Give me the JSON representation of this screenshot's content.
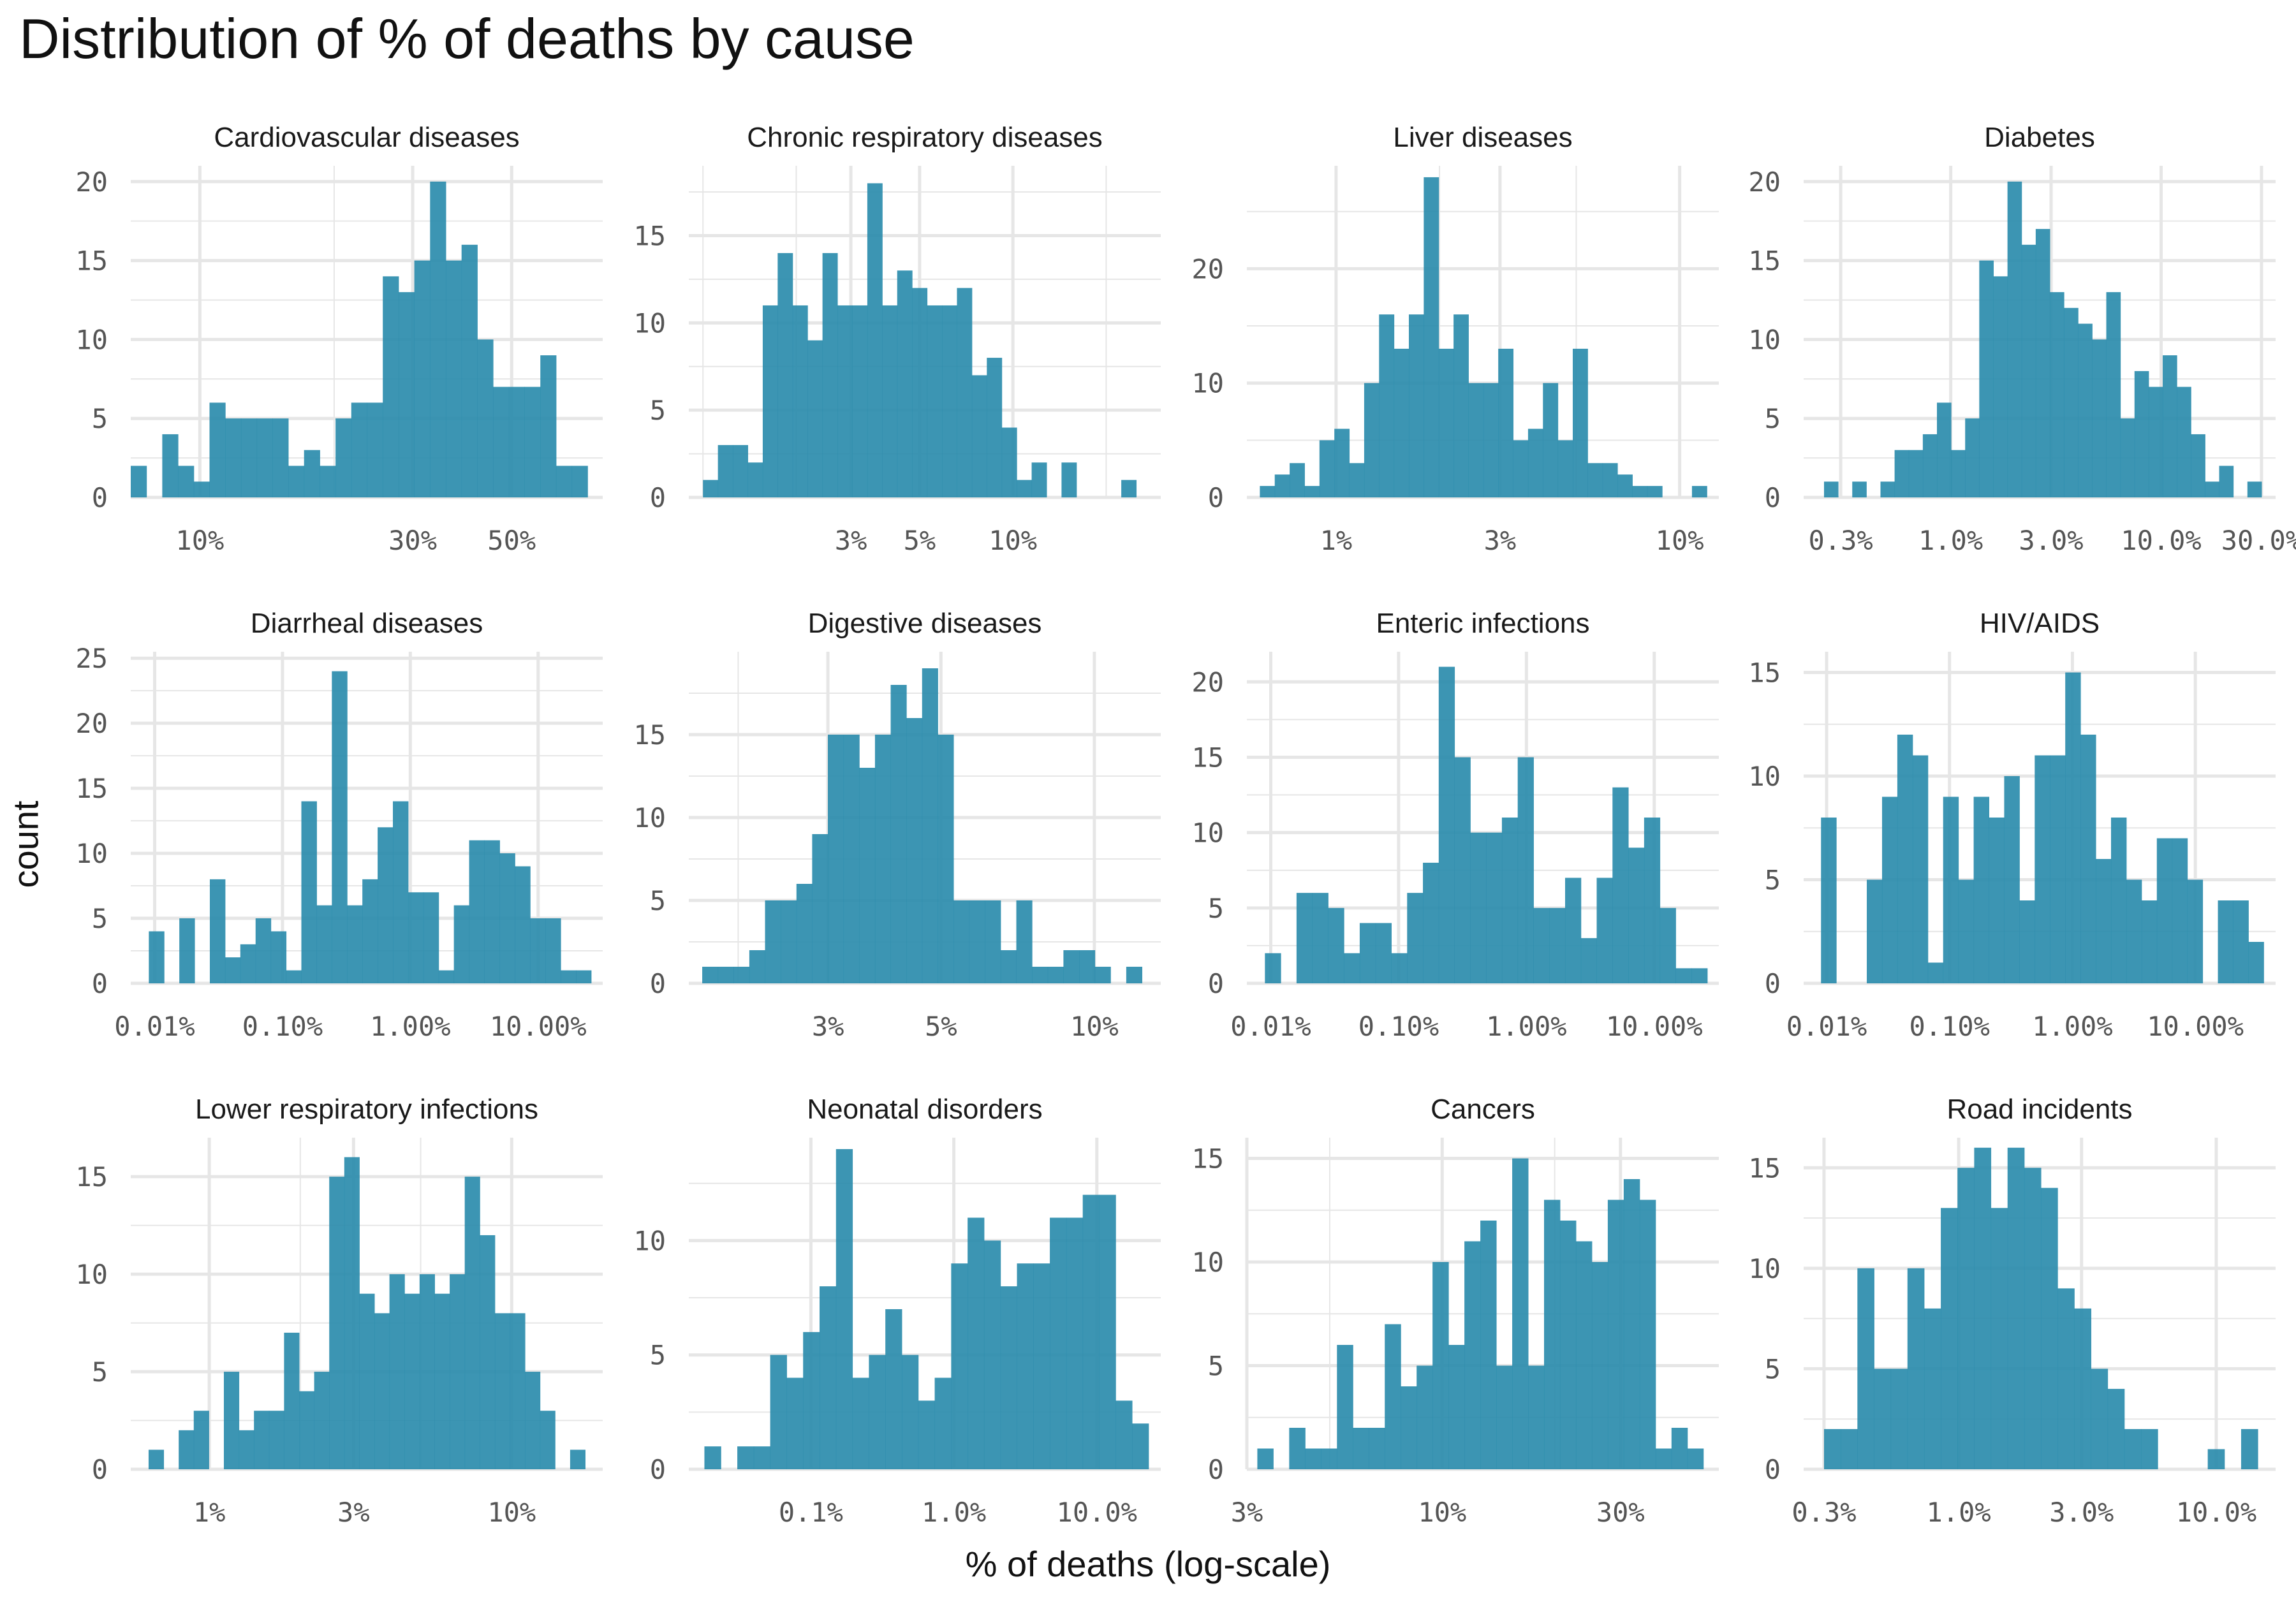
{
  "title": "Distribution of % of deaths by cause",
  "xlabel": "% of deaths (log-scale)",
  "ylabel": "count",
  "colors": {
    "bar": "#2b8cad",
    "grid": "#e6e6e6"
  },
  "chart_data": [
    {
      "type": "bar",
      "title": "Cardiovascular diseases",
      "scale": "log",
      "xlim": [
        7.0,
        80.0
      ],
      "ylim": [
        0,
        21
      ],
      "yticks": [
        0,
        5,
        10,
        15,
        20
      ],
      "xticks": [
        {
          "value": 10,
          "label": "10%"
        },
        {
          "value": 30,
          "label": "30%"
        },
        {
          "value": 50,
          "label": "50%"
        }
      ],
      "minor_x": [
        20
      ],
      "bin_start": 7.0,
      "bin_end": 74.0,
      "values": [
        2,
        0,
        4,
        2,
        1,
        6,
        5,
        5,
        5,
        5,
        2,
        3,
        2,
        5,
        6,
        6,
        14,
        13,
        15,
        20,
        15,
        16,
        10,
        7,
        7,
        7,
        9,
        2,
        2
      ]
    },
    {
      "type": "bar",
      "title": "Chronic respiratory diseases",
      "scale": "log",
      "xlim": [
        0.9,
        30.0
      ],
      "ylim": [
        0,
        19
      ],
      "yticks": [
        0,
        5,
        10,
        15
      ],
      "xticks": [
        {
          "value": 3,
          "label": "3%"
        },
        {
          "value": 5,
          "label": "5%"
        },
        {
          "value": 10,
          "label": "10%"
        }
      ],
      "minor_x": [
        1,
        2,
        20
      ],
      "bin_start": 1.0,
      "bin_end": 25.0,
      "values": [
        1,
        3,
        3,
        2,
        11,
        14,
        11,
        9,
        14,
        11,
        11,
        18,
        11,
        13,
        12,
        11,
        11,
        12,
        7,
        8,
        4,
        1,
        2,
        0,
        2,
        0,
        0,
        0,
        1
      ]
    },
    {
      "type": "bar",
      "title": "Liver diseases",
      "scale": "log",
      "xlim": [
        0.55,
        13.0
      ],
      "ylim": [
        0,
        29
      ],
      "yticks": [
        0,
        10,
        20
      ],
      "xticks": [
        {
          "value": 1,
          "label": "1%"
        },
        {
          "value": 3,
          "label": "3%"
        },
        {
          "value": 10,
          "label": "10%"
        }
      ],
      "minor_x": [
        2,
        5
      ],
      "bin_start": 0.6,
      "bin_end": 12.0,
      "values": [
        1,
        2,
        3,
        1,
        5,
        6,
        3,
        10,
        16,
        13,
        16,
        28,
        13,
        16,
        10,
        10,
        13,
        5,
        6,
        10,
        5,
        13,
        3,
        3,
        2,
        1,
        1,
        0,
        0,
        1
      ]
    },
    {
      "type": "bar",
      "title": "Diabetes",
      "scale": "log",
      "xlim": [
        0.2,
        35.0
      ],
      "ylim": [
        0,
        21
      ],
      "yticks": [
        0,
        5,
        10,
        15,
        20
      ],
      "xticks": [
        {
          "value": 0.3,
          "label": "0.3%"
        },
        {
          "value": 1,
          "label": "1.0%"
        },
        {
          "value": 3,
          "label": "3.0%"
        },
        {
          "value": 10,
          "label": "10.0%"
        },
        {
          "value": 30,
          "label": "30.0%"
        }
      ],
      "minor_x": [],
      "bin_start": 0.25,
      "bin_end": 30.0,
      "values": [
        1,
        0,
        1,
        0,
        1,
        3,
        3,
        4,
        6,
        3,
        5,
        15,
        14,
        20,
        16,
        17,
        13,
        12,
        11,
        10,
        13,
        5,
        8,
        7,
        9,
        7,
        4,
        1,
        2,
        0,
        1
      ]
    },
    {
      "type": "bar",
      "title": "Diarrheal diseases",
      "scale": "log",
      "xlim": [
        0.0065,
        32.0
      ],
      "ylim": [
        0,
        25.5
      ],
      "yticks": [
        0,
        5,
        10,
        15,
        20,
        25
      ],
      "xticks": [
        {
          "value": 0.01,
          "label": "0.01%"
        },
        {
          "value": 0.1,
          "label": "0.10%"
        },
        {
          "value": 1,
          "label": "1.00%"
        },
        {
          "value": 10,
          "label": "10.00%"
        }
      ],
      "minor_x": [],
      "bin_start": 0.009,
      "bin_end": 26.0,
      "values": [
        4,
        0,
        5,
        0,
        8,
        2,
        3,
        5,
        4,
        1,
        14,
        6,
        24,
        6,
        8,
        12,
        14,
        7,
        7,
        1,
        6,
        11,
        11,
        10,
        9,
        5,
        5,
        1,
        1
      ]
    },
    {
      "type": "bar",
      "title": "Digestive diseases",
      "scale": "log",
      "xlim": [
        1.6,
        13.5
      ],
      "ylim": [
        0,
        20
      ],
      "yticks": [
        0,
        5,
        10,
        15
      ],
      "xticks": [
        {
          "value": 3,
          "label": "3%"
        },
        {
          "value": 5,
          "label": "5%"
        },
        {
          "value": 10,
          "label": "10%"
        }
      ],
      "minor_x": [
        2
      ],
      "bin_start": 1.7,
      "bin_end": 12.4,
      "values": [
        1,
        1,
        1,
        2,
        5,
        5,
        6,
        9,
        15,
        15,
        13,
        15,
        18,
        16,
        19,
        15,
        5,
        5,
        5,
        2,
        5,
        1,
        1,
        2,
        2,
        1,
        0,
        1
      ]
    },
    {
      "type": "bar",
      "title": "Enteric infections",
      "scale": "log",
      "xlim": [
        0.0065,
        32.0
      ],
      "ylim": [
        0,
        22
      ],
      "yticks": [
        0,
        5,
        10,
        15,
        20
      ],
      "xticks": [
        {
          "value": 0.01,
          "label": "0.01%"
        },
        {
          "value": 0.1,
          "label": "0.10%"
        },
        {
          "value": 1,
          "label": "1.00%"
        },
        {
          "value": 10,
          "label": "10.00%"
        }
      ],
      "minor_x": [],
      "bin_start": 0.009,
      "bin_end": 26.0,
      "values": [
        2,
        0,
        6,
        6,
        5,
        2,
        4,
        4,
        2,
        6,
        8,
        21,
        15,
        10,
        10,
        11,
        15,
        5,
        5,
        7,
        3,
        7,
        13,
        9,
        11,
        5,
        1,
        1
      ]
    },
    {
      "type": "bar",
      "title": "HIV/AIDS",
      "scale": "log",
      "xlim": [
        0.0065,
        45.0
      ],
      "ylim": [
        0,
        16
      ],
      "yticks": [
        0,
        5,
        10,
        15
      ],
      "xticks": [
        {
          "value": 0.01,
          "label": "0.01%"
        },
        {
          "value": 0.1,
          "label": "0.10%"
        },
        {
          "value": 1,
          "label": "1.00%"
        },
        {
          "value": 10,
          "label": "10.00%"
        }
      ],
      "minor_x": [],
      "bin_start": 0.009,
      "bin_end": 36.0,
      "values": [
        8,
        0,
        0,
        5,
        9,
        12,
        11,
        1,
        9,
        5,
        9,
        8,
        10,
        4,
        11,
        11,
        15,
        12,
        6,
        8,
        5,
        4,
        7,
        7,
        5,
        0,
        4,
        4,
        2
      ]
    },
    {
      "type": "bar",
      "title": "Lower respiratory infections",
      "scale": "log",
      "xlim": [
        0.55,
        20.0
      ],
      "ylim": [
        0,
        17
      ],
      "yticks": [
        0,
        5,
        10,
        15
      ],
      "xticks": [
        {
          "value": 1,
          "label": "1%"
        },
        {
          "value": 3,
          "label": "3%"
        },
        {
          "value": 10,
          "label": "10%"
        }
      ],
      "minor_x": [
        2,
        5
      ],
      "bin_start": 0.63,
      "bin_end": 17.5,
      "values": [
        1,
        0,
        2,
        3,
        0,
        5,
        2,
        3,
        3,
        7,
        4,
        5,
        15,
        16,
        9,
        8,
        10,
        9,
        10,
        9,
        10,
        15,
        12,
        8,
        8,
        5,
        3,
        0,
        1
      ]
    },
    {
      "type": "bar",
      "title": "Neonatal disorders",
      "scale": "log",
      "xlim": [
        0.014,
        28.0
      ],
      "ylim": [
        0,
        14.5
      ],
      "yticks": [
        0,
        5,
        10
      ],
      "xticks": [
        {
          "value": 0.1,
          "label": "0.1%"
        },
        {
          "value": 1,
          "label": "1.0%"
        },
        {
          "value": 10,
          "label": "10.0%"
        }
      ],
      "minor_x": [],
      "bin_start": 0.018,
      "bin_end": 23.0,
      "values": [
        1,
        0,
        1,
        1,
        5,
        4,
        6,
        8,
        14,
        4,
        5,
        7,
        5,
        3,
        4,
        9,
        11,
        10,
        8,
        9,
        9,
        11,
        11,
        12,
        12,
        3,
        2
      ]
    },
    {
      "type": "bar",
      "title": "Cancers",
      "scale": "log",
      "xlim": [
        3.0,
        55.0
      ],
      "ylim": [
        0,
        16
      ],
      "yticks": [
        0,
        5,
        10,
        15
      ],
      "xticks": [
        {
          "value": 3,
          "label": "3%"
        },
        {
          "value": 10,
          "label": "10%"
        },
        {
          "value": 30,
          "label": "30%"
        }
      ],
      "minor_x": [
        5,
        20
      ],
      "bin_start": 3.2,
      "bin_end": 50.0,
      "values": [
        1,
        0,
        2,
        1,
        1,
        6,
        2,
        2,
        7,
        4,
        5,
        10,
        6,
        11,
        12,
        5,
        15,
        5,
        13,
        12,
        11,
        10,
        13,
        14,
        13,
        1,
        2,
        1
      ]
    },
    {
      "type": "bar",
      "title": "Road incidents",
      "scale": "log",
      "xlim": [
        0.25,
        17.0
      ],
      "ylim": [
        0,
        16.5
      ],
      "yticks": [
        0,
        5,
        10,
        15
      ],
      "xticks": [
        {
          "value": 0.3,
          "label": "0.3%"
        },
        {
          "value": 1,
          "label": "1.0%"
        },
        {
          "value": 3,
          "label": "3.0%"
        },
        {
          "value": 10,
          "label": "10.0%"
        }
      ],
      "minor_x": [],
      "bin_start": 0.3,
      "bin_end": 14.5,
      "values": [
        2,
        2,
        10,
        5,
        5,
        10,
        8,
        13,
        15,
        16,
        13,
        16,
        15,
        14,
        9,
        8,
        5,
        4,
        2,
        2,
        0,
        0,
        0,
        1,
        0,
        2
      ]
    }
  ]
}
